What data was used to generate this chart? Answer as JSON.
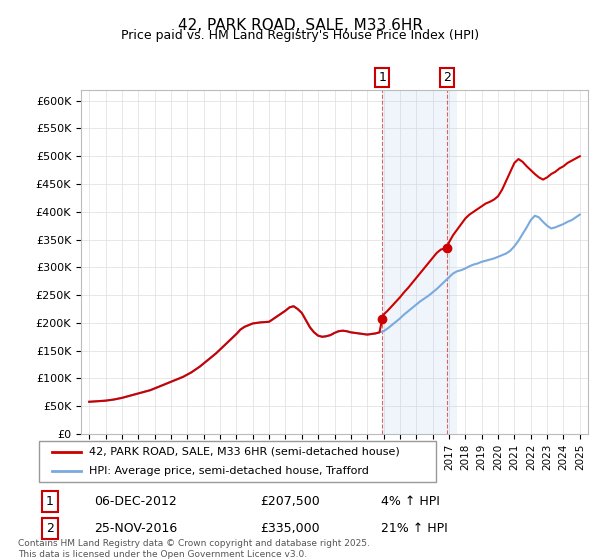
{
  "title": "42, PARK ROAD, SALE, M33 6HR",
  "subtitle": "Price paid vs. HM Land Registry's House Price Index (HPI)",
  "ylim": [
    0,
    620000
  ],
  "yticks": [
    0,
    50000,
    100000,
    150000,
    200000,
    250000,
    300000,
    350000,
    400000,
    450000,
    500000,
    550000,
    600000
  ],
  "ytick_labels": [
    "£0",
    "£50K",
    "£100K",
    "£150K",
    "£200K",
    "£250K",
    "£300K",
    "£350K",
    "£400K",
    "£450K",
    "£500K",
    "£550K",
    "£600K"
  ],
  "xlim_start": 1994.5,
  "xlim_end": 2025.5,
  "xticks": [
    1995,
    1996,
    1997,
    1998,
    1999,
    2000,
    2001,
    2002,
    2003,
    2004,
    2005,
    2006,
    2007,
    2008,
    2009,
    2010,
    2011,
    2012,
    2013,
    2014,
    2015,
    2016,
    2017,
    2018,
    2019,
    2020,
    2021,
    2022,
    2023,
    2024,
    2025
  ],
  "transaction1_x": 2012.92,
  "transaction1_y": 207500,
  "transaction1_label": "1",
  "transaction1_date": "06-DEC-2012",
  "transaction1_price": "£207,500",
  "transaction1_hpi": "4% ↑ HPI",
  "transaction2_x": 2016.9,
  "transaction2_y": 335000,
  "transaction2_label": "2",
  "transaction2_date": "25-NOV-2016",
  "transaction2_price": "£335,000",
  "transaction2_hpi": "21% ↑ HPI",
  "shaded_region_start": 2012.92,
  "shaded_region_end": 2017.5,
  "line_color_property": "#cc0000",
  "line_color_hpi": "#7aaadd",
  "background_color": "#ffffff",
  "grid_color": "#dddddd",
  "legend_label_property": "42, PARK ROAD, SALE, M33 6HR (semi-detached house)",
  "legend_label_hpi": "HPI: Average price, semi-detached house, Trafford",
  "footnote": "Contains HM Land Registry data © Crown copyright and database right 2025.\nThis data is licensed under the Open Government Licence v3.0.",
  "hpi_data_x": [
    1995,
    1995.25,
    1995.5,
    1995.75,
    1996,
    1996.25,
    1996.5,
    1996.75,
    1997,
    1997.25,
    1997.5,
    1997.75,
    1998,
    1998.25,
    1998.5,
    1998.75,
    1999,
    1999.25,
    1999.5,
    1999.75,
    2000,
    2000.25,
    2000.5,
    2000.75,
    2001,
    2001.25,
    2001.5,
    2001.75,
    2002,
    2002.25,
    2002.5,
    2002.75,
    2003,
    2003.25,
    2003.5,
    2003.75,
    2004,
    2004.25,
    2004.5,
    2004.75,
    2005,
    2005.25,
    2005.5,
    2005.75,
    2006,
    2006.25,
    2006.5,
    2006.75,
    2007,
    2007.25,
    2007.5,
    2007.75,
    2008,
    2008.25,
    2008.5,
    2008.75,
    2009,
    2009.25,
    2009.5,
    2009.75,
    2010,
    2010.25,
    2010.5,
    2010.75,
    2011,
    2011.25,
    2011.5,
    2011.75,
    2012,
    2012.25,
    2012.5,
    2012.75,
    2013,
    2013.25,
    2013.5,
    2013.75,
    2014,
    2014.25,
    2014.5,
    2014.75,
    2015,
    2015.25,
    2015.5,
    2015.75,
    2016,
    2016.25,
    2016.5,
    2016.75,
    2017,
    2017.25,
    2017.5,
    2017.75,
    2018,
    2018.25,
    2018.5,
    2018.75,
    2019,
    2019.25,
    2019.5,
    2019.75,
    2020,
    2020.25,
    2020.5,
    2020.75,
    2021,
    2021.25,
    2021.5,
    2021.75,
    2022,
    2022.25,
    2022.5,
    2022.75,
    2023,
    2023.25,
    2023.5,
    2023.75,
    2024,
    2024.25,
    2024.5,
    2024.75,
    2025
  ],
  "hpi_data_y": [
    58000,
    58500,
    59000,
    59500,
    60000,
    61000,
    62000,
    63500,
    65000,
    67000,
    69000,
    71000,
    73000,
    75000,
    77000,
    79000,
    82000,
    85000,
    88000,
    91000,
    94000,
    97000,
    100000,
    103000,
    107000,
    111000,
    116000,
    121000,
    127000,
    133000,
    139000,
    145000,
    152000,
    159000,
    166000,
    173000,
    180000,
    188000,
    193000,
    196000,
    199000,
    200000,
    201000,
    201500,
    202000,
    207000,
    212000,
    217000,
    222000,
    228000,
    230000,
    225000,
    218000,
    205000,
    192000,
    183000,
    177000,
    175000,
    176000,
    178000,
    182000,
    185000,
    186000,
    185000,
    183000,
    182000,
    181000,
    180000,
    179000,
    180000,
    181000,
    183000,
    185000,
    190000,
    196000,
    202000,
    208000,
    215000,
    221000,
    227000,
    233000,
    239000,
    244000,
    249000,
    255000,
    261000,
    268000,
    275000,
    282000,
    289000,
    293000,
    295000,
    298000,
    302000,
    305000,
    307000,
    310000,
    312000,
    314000,
    316000,
    319000,
    322000,
    325000,
    330000,
    338000,
    348000,
    360000,
    372000,
    385000,
    393000,
    390000,
    382000,
    375000,
    370000,
    372000,
    375000,
    378000,
    382000,
    385000,
    390000,
    395000
  ],
  "property_data_x": [
    1995,
    1995.25,
    1995.5,
    1995.75,
    1996,
    1996.25,
    1996.5,
    1996.75,
    1997,
    1997.25,
    1997.5,
    1997.75,
    1998,
    1998.25,
    1998.5,
    1998.75,
    1999,
    1999.25,
    1999.5,
    1999.75,
    2000,
    2000.25,
    2000.5,
    2000.75,
    2001,
    2001.25,
    2001.5,
    2001.75,
    2002,
    2002.25,
    2002.5,
    2002.75,
    2003,
    2003.25,
    2003.5,
    2003.75,
    2004,
    2004.25,
    2004.5,
    2004.75,
    2005,
    2005.25,
    2005.5,
    2005.75,
    2006,
    2006.25,
    2006.5,
    2006.75,
    2007,
    2007.25,
    2007.5,
    2007.75,
    2008,
    2008.25,
    2008.5,
    2008.75,
    2009,
    2009.25,
    2009.5,
    2009.75,
    2010,
    2010.25,
    2010.5,
    2010.75,
    2011,
    2011.25,
    2011.5,
    2011.75,
    2012,
    2012.25,
    2012.5,
    2012.75,
    2012.92,
    2013,
    2013.25,
    2013.5,
    2013.75,
    2014,
    2014.25,
    2014.5,
    2014.75,
    2015,
    2015.25,
    2015.5,
    2015.75,
    2016,
    2016.25,
    2016.5,
    2016.75,
    2016.9,
    2017,
    2017.25,
    2017.5,
    2017.75,
    2018,
    2018.25,
    2018.5,
    2018.75,
    2019,
    2019.25,
    2019.5,
    2019.75,
    2020,
    2020.25,
    2020.5,
    2020.75,
    2021,
    2021.25,
    2021.5,
    2021.75,
    2022,
    2022.25,
    2022.5,
    2022.75,
    2023,
    2023.25,
    2023.5,
    2023.75,
    2024,
    2024.25,
    2024.5,
    2024.75,
    2025
  ],
  "property_data_y": [
    58000,
    58500,
    59000,
    59500,
    60000,
    61000,
    62000,
    63500,
    65000,
    67000,
    69000,
    71000,
    73000,
    75000,
    77000,
    79000,
    82000,
    85000,
    88000,
    91000,
    94000,
    97000,
    100000,
    103000,
    107000,
    111000,
    116000,
    121000,
    127000,
    133000,
    139000,
    145000,
    152000,
    159000,
    166000,
    173000,
    180000,
    188000,
    193000,
    196000,
    199000,
    200000,
    201000,
    201500,
    202000,
    207000,
    212000,
    217000,
    222000,
    228000,
    230000,
    225000,
    218000,
    205000,
    192000,
    183000,
    177000,
    175000,
    176000,
    178000,
    182000,
    185000,
    186000,
    185000,
    183000,
    182000,
    181000,
    180000,
    179000,
    180000,
    181000,
    183000,
    207500,
    215000,
    222000,
    230000,
    238000,
    246000,
    255000,
    263000,
    272000,
    281000,
    290000,
    299000,
    308000,
    317000,
    326000,
    332000,
    334000,
    335000,
    345000,
    358000,
    368000,
    378000,
    388000,
    395000,
    400000,
    405000,
    410000,
    415000,
    418000,
    422000,
    428000,
    440000,
    456000,
    472000,
    488000,
    495000,
    490000,
    482000,
    475000,
    468000,
    462000,
    458000,
    462000,
    468000,
    472000,
    478000,
    482000,
    488000,
    492000,
    496000,
    500000
  ]
}
